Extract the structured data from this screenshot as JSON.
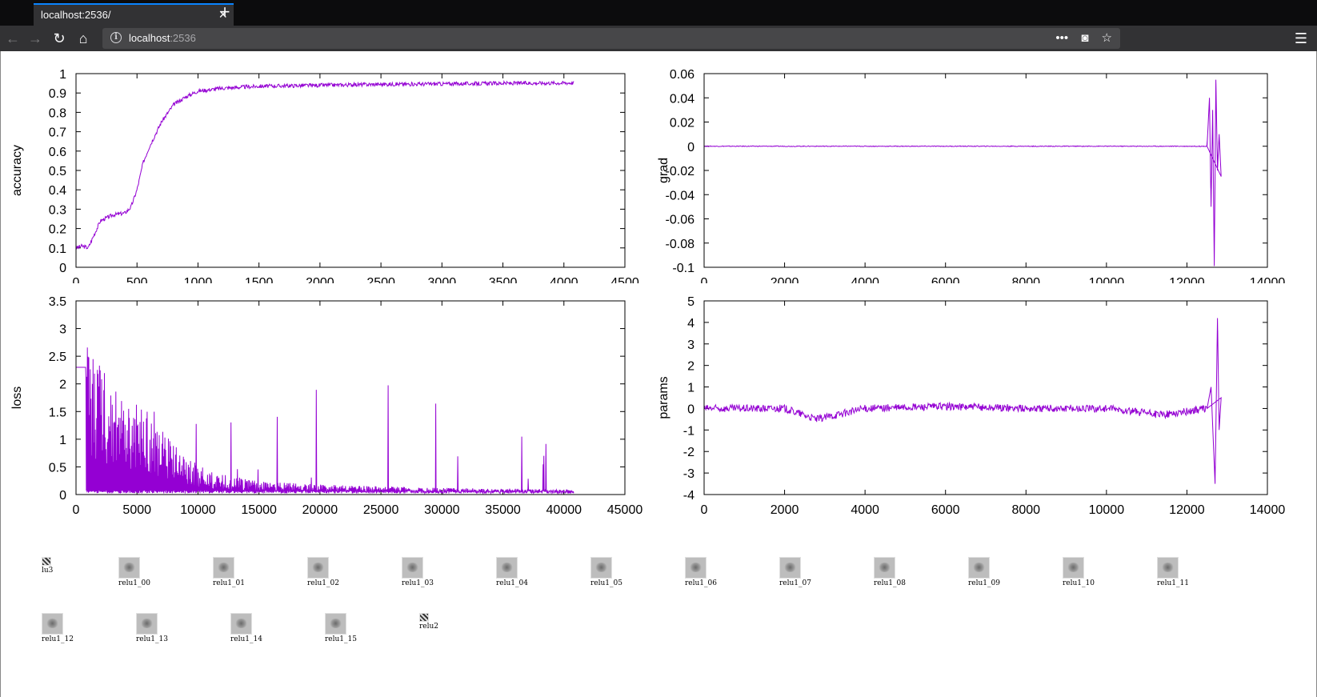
{
  "browser": {
    "tab_title": "localhost:2536/",
    "url_host": "localhost",
    "url_port": ":2536",
    "icons": {
      "back": "arrow-left-icon",
      "forward": "arrow-right-icon",
      "reload": "reload-icon",
      "home": "home-icon",
      "info": "info-icon",
      "more": "ellipsis-icon",
      "pocket": "pocket-icon",
      "bookmark": "star-icon",
      "menu": "hamburger-menu-icon",
      "close": "close-icon",
      "new_tab": "plus-icon"
    }
  },
  "chart_data": [
    {
      "type": "line",
      "ylabel": "accuracy",
      "xlim": [
        0,
        4500
      ],
      "ylim": [
        0,
        1
      ],
      "xticks": [
        "0",
        "500",
        "1000",
        "1500",
        "2000",
        "2500",
        "3000",
        "3500",
        "4000",
        "4500"
      ],
      "yticks": [
        "0",
        "0.1",
        "0.2",
        "0.3",
        "0.4",
        "0.5",
        "0.6",
        "0.7",
        "0.8",
        "0.9",
        "1"
      ],
      "color": "#9400d3",
      "series": [
        {
          "x": [
            0,
            50,
            100,
            200,
            300,
            400,
            450,
            500,
            550,
            600,
            700,
            800,
            900,
            1000,
            1200,
            1500,
            2000,
            2500,
            3000,
            3500,
            4000,
            4080
          ],
          "y": [
            0.1,
            0.11,
            0.1,
            0.24,
            0.27,
            0.28,
            0.31,
            0.4,
            0.54,
            0.62,
            0.75,
            0.84,
            0.88,
            0.91,
            0.925,
            0.935,
            0.94,
            0.945,
            0.947,
            0.95,
            0.952,
            0.953
          ]
        }
      ]
    },
    {
      "type": "line",
      "ylabel": "grad",
      "xlim": [
        0,
        14000
      ],
      "ylim": [
        -0.1,
        0.06
      ],
      "xticks": [
        "0",
        "2000",
        "4000",
        "6000",
        "8000",
        "10000",
        "12000",
        "14000"
      ],
      "yticks": [
        "-0.1",
        "-0.08",
        "-0.06",
        "-0.04",
        "-0.02",
        "0",
        "0.02",
        "0.04",
        "0.06"
      ],
      "color": "#9400d3",
      "series": [
        {
          "x": [
            0,
            12500,
            12560,
            12600,
            12640,
            12680,
            12720,
            12760,
            12800,
            12850
          ],
          "y": [
            0,
            0,
            0.04,
            -0.05,
            0.03,
            -0.099,
            0.055,
            -0.02,
            0.01,
            -0.025
          ]
        }
      ]
    },
    {
      "type": "line",
      "ylabel": "loss",
      "xlim": [
        0,
        45000
      ],
      "ylim": [
        0,
        3.5
      ],
      "xticks": [
        "0",
        "5000",
        "10000",
        "15000",
        "20000",
        "25000",
        "30000",
        "35000",
        "40000",
        "45000"
      ],
      "yticks": [
        "0",
        "0.5",
        "1",
        "1.5",
        "2",
        "2.5",
        "3",
        "3.5"
      ],
      "color": "#9400d3",
      "series": [
        {
          "x": [
            0,
            1000,
            3000,
            5000,
            7000,
            9000,
            11000,
            15000,
            20000,
            30000,
            40000,
            40800
          ],
          "y": [
            2.3,
            2.3,
            1.7,
            1.5,
            1.0,
            0.6,
            0.35,
            0.2,
            0.15,
            0.1,
            0.08,
            0.08
          ]
        }
      ]
    },
    {
      "type": "line",
      "ylabel": "params",
      "xlim": [
        0,
        14000
      ],
      "ylim": [
        -4,
        5
      ],
      "xticks": [
        "0",
        "2000",
        "4000",
        "6000",
        "8000",
        "10000",
        "12000",
        "14000"
      ],
      "yticks": [
        "-4",
        "-3",
        "-2",
        "-1",
        "0",
        "1",
        "2",
        "3",
        "4",
        "5"
      ],
      "color": "#9400d3",
      "series": [
        {
          "x": [
            0,
            2000,
            2800,
            4000,
            6000,
            8000,
            10000,
            11400,
            12500,
            12600,
            12700,
            12760,
            12800,
            12850
          ],
          "y": [
            0,
            0,
            -0.5,
            0,
            0.1,
            0,
            0,
            -0.3,
            0,
            1,
            -3.5,
            4.2,
            -1,
            0.5
          ]
        }
      ]
    }
  ],
  "thumbnails_row1": [
    {
      "label": "lu3",
      "tiny": true
    },
    {
      "label": "relu1_00"
    },
    {
      "label": "relu1_01"
    },
    {
      "label": "relu1_02"
    },
    {
      "label": "relu1_03"
    },
    {
      "label": "relu1_04"
    },
    {
      "label": "relu1_05"
    },
    {
      "label": "relu1_06"
    },
    {
      "label": "relu1_07"
    },
    {
      "label": "relu1_08"
    },
    {
      "label": "relu1_09"
    },
    {
      "label": "relu1_10"
    },
    {
      "label": "relu1_11"
    }
  ],
  "thumbnails_row2": [
    {
      "label": "relu1_12"
    },
    {
      "label": "relu1_13"
    },
    {
      "label": "relu1_14"
    },
    {
      "label": "relu1_15"
    },
    {
      "label": "relu2",
      "tiny": true
    }
  ]
}
